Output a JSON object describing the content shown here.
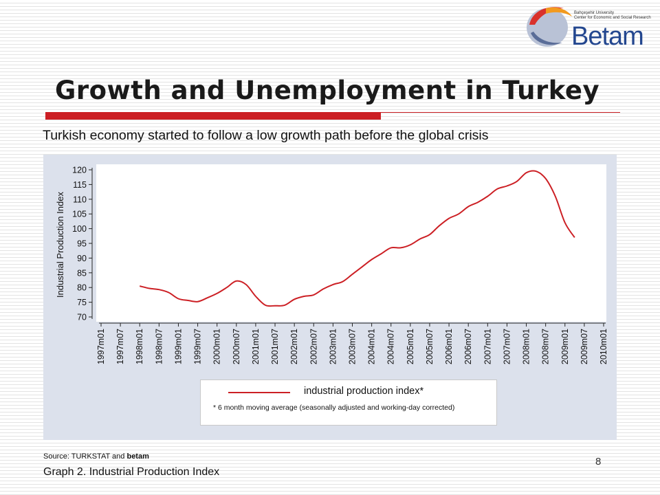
{
  "logo": {
    "name": "Betam",
    "institution_line1": "Bahçeşehir University",
    "institution_line2": "Center for Economic and Social Research"
  },
  "slide": {
    "title": "Growth and Unemployment in Turkey",
    "subtitle": "Turkish economy started to follow a low growth path before the global crisis",
    "source_prefix": "Source: TURKSTAT  and ",
    "source_bold": "betam",
    "caption": "Graph 2. Industrial Production Index",
    "page_number": "8"
  },
  "colors": {
    "series": "#cc1f24",
    "panel": "#dce1ec",
    "plot_bg": "#ffffff",
    "title_rule": "#cc1f24"
  },
  "legend": {
    "label": "industrial production index*",
    "note": "* 6 month moving average (seasonally adjusted and working-day corrected)"
  },
  "chart_data": {
    "type": "line",
    "title": "",
    "xlabel": "",
    "ylabel": "Industrial Production Index",
    "ylim": [
      70,
      120
    ],
    "yticks": [
      70,
      75,
      80,
      85,
      90,
      95,
      100,
      105,
      110,
      115,
      120
    ],
    "xlim": [
      "1997m01",
      "2010m01"
    ],
    "xticks": [
      "1997m01",
      "1997m07",
      "1998m01",
      "1998m07",
      "1999m01",
      "1999m07",
      "2000m01",
      "2000m07",
      "2001m01",
      "2001m07",
      "2002m01",
      "2002m07",
      "2003m01",
      "2003m07",
      "2004m01",
      "2004m07",
      "2005m01",
      "2005m07",
      "2006m01",
      "2006m07",
      "2007m01",
      "2007m07",
      "2008m01",
      "2008m07",
      "2009m01",
      "2009m07",
      "2010m01"
    ],
    "grid": false,
    "legend_position": "bottom",
    "series": [
      {
        "name": "industrial production index*",
        "x": [
          "1998m01",
          "1998m04",
          "1998m07",
          "1998m10",
          "1999m01",
          "1999m04",
          "1999m07",
          "1999m10",
          "2000m01",
          "2000m04",
          "2000m07",
          "2000m10",
          "2001m01",
          "2001m04",
          "2001m07",
          "2001m10",
          "2002m01",
          "2002m04",
          "2002m07",
          "2002m10",
          "2003m01",
          "2003m04",
          "2003m07",
          "2003m10",
          "2004m01",
          "2004m04",
          "2004m07",
          "2004m10",
          "2005m01",
          "2005m04",
          "2005m07",
          "2005m10",
          "2006m01",
          "2006m04",
          "2006m07",
          "2006m10",
          "2007m01",
          "2007m04",
          "2007m07",
          "2007m10",
          "2008m01",
          "2008m04",
          "2008m07",
          "2008m10",
          "2009m01",
          "2009m04"
        ],
        "values": [
          80.5,
          79.7,
          79.3,
          78.3,
          76.2,
          75.6,
          75.2,
          76.5,
          78.0,
          80.0,
          82.2,
          81.0,
          77.0,
          74.0,
          73.8,
          74.0,
          76.0,
          77.0,
          77.5,
          79.5,
          81.0,
          82.0,
          84.5,
          87.0,
          89.5,
          91.5,
          93.5,
          93.5,
          94.5,
          96.5,
          98.0,
          101.0,
          103.5,
          105.0,
          107.5,
          109.0,
          111.0,
          113.5,
          114.5,
          116.0,
          119.0,
          119.5,
          117.0,
          111.0,
          102.0,
          97.0
        ]
      }
    ]
  }
}
